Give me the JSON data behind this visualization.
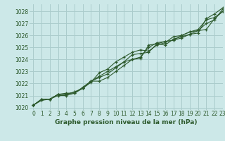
{
  "title": "Graphe pression niveau de la mer (hPa)",
  "background_color": "#cce8e8",
  "grid_color": "#aacccc",
  "line_color": "#2d5a2d",
  "xlim": [
    -0.5,
    23
  ],
  "ylim": [
    1019.8,
    1028.6
  ],
  "yticks": [
    1020,
    1021,
    1022,
    1023,
    1024,
    1025,
    1026,
    1027,
    1028
  ],
  "xticks": [
    0,
    1,
    2,
    3,
    4,
    5,
    6,
    7,
    8,
    9,
    10,
    11,
    12,
    13,
    14,
    15,
    16,
    17,
    18,
    19,
    20,
    21,
    22,
    23
  ],
  "series": [
    [
      1020.2,
      1020.7,
      1020.7,
      1021.0,
      1021.0,
      1021.2,
      1021.7,
      1022.2,
      1022.5,
      1022.8,
      1023.3,
      1023.8,
      1024.0,
      1024.1,
      1025.2,
      1025.3,
      1025.5,
      1025.6,
      1025.8,
      1026.1,
      1026.2,
      1027.4,
      1027.8,
      1028.3
    ],
    [
      1020.2,
      1020.7,
      1020.7,
      1021.1,
      1021.1,
      1021.3,
      1021.6,
      1022.2,
      1022.6,
      1023.0,
      1023.4,
      1023.8,
      1024.4,
      1024.5,
      1024.6,
      1025.3,
      1025.2,
      1025.7,
      1025.9,
      1026.1,
      1026.4,
      1026.5,
      1027.4,
      1028.0
    ],
    [
      1020.2,
      1020.6,
      1020.7,
      1021.1,
      1021.1,
      1021.3,
      1021.6,
      1022.1,
      1022.9,
      1023.2,
      1023.8,
      1024.2,
      1024.6,
      1024.8,
      1024.7,
      1025.2,
      1025.4,
      1025.9,
      1026.0,
      1026.3,
      1026.5,
      1027.3,
      1027.5,
      1028.0
    ],
    [
      1020.2,
      1020.7,
      1020.7,
      1021.1,
      1021.2,
      1021.2,
      1021.6,
      1022.2,
      1022.2,
      1022.5,
      1023.0,
      1023.5,
      1024.0,
      1024.2,
      1025.0,
      1025.4,
      1025.5,
      1025.6,
      1026.0,
      1026.3,
      1026.4,
      1027.0,
      1027.3,
      1028.2
    ]
  ],
  "title_fontsize": 6.5,
  "tick_fontsize": 5.5
}
